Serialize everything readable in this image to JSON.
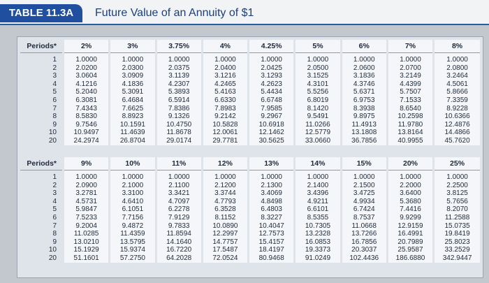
{
  "header": {
    "label": "TABLE 11.3A",
    "title": "Future Value of an Annuity of $1"
  },
  "tables": [
    {
      "header_row": [
        "Periods*",
        "2%",
        "3%",
        "3.75%",
        "4%",
        "4.25%",
        "5%",
        "6%",
        "7%",
        "8%"
      ],
      "rows": [
        [
          "1",
          "1.0000",
          "1.0000",
          "1.0000",
          "1.0000",
          "1.0000",
          "1.0000",
          "1.0000",
          "1.0000",
          "1.0000"
        ],
        [
          "2",
          "2.0200",
          "2.0300",
          "2.0375",
          "2.0400",
          "2.0425",
          "2.0500",
          "2.0600",
          "2.0700",
          "2.0800"
        ],
        [
          "3",
          "3.0604",
          "3.0909",
          "3.1139",
          "3.1216",
          "3.1293",
          "3.1525",
          "3.1836",
          "3.2149",
          "3.2464"
        ],
        [
          "4",
          "4.1216",
          "4.1836",
          "4.2307",
          "4.2465",
          "4.2623",
          "4.3101",
          "4.3746",
          "4.4399",
          "4.5061"
        ],
        [
          "5",
          "5.2040",
          "5.3091",
          "5.3893",
          "5.4163",
          "5.4434",
          "5.5256",
          "5.6371",
          "5.7507",
          "5.8666"
        ],
        [
          "6",
          "6.3081",
          "6.4684",
          "6.5914",
          "6.6330",
          "6.6748",
          "6.8019",
          "6.9753",
          "7.1533",
          "7.3359"
        ],
        [
          "7",
          "7.4343",
          "7.6625",
          "7.8386",
          "7.8983",
          "7.9585",
          "8.1420",
          "8.3938",
          "8.6540",
          "8.9228"
        ],
        [
          "8",
          "8.5830",
          "8.8923",
          "9.1326",
          "9.2142",
          "9.2967",
          "9.5491",
          "9.8975",
          "10.2598",
          "10.6366"
        ],
        [
          "9",
          "9.7546",
          "10.1591",
          "10.4750",
          "10.5828",
          "10.6918",
          "11.0266",
          "11.4913",
          "11.9780",
          "12.4876"
        ],
        [
          "10",
          "10.9497",
          "11.4639",
          "11.8678",
          "12.0061",
          "12.1462",
          "12.5779",
          "13.1808",
          "13.8164",
          "14.4866"
        ],
        [
          "20",
          "24.2974",
          "26.8704",
          "29.0174",
          "29.7781",
          "30.5625",
          "33.0660",
          "36.7856",
          "40.9955",
          "45.7620"
        ]
      ]
    },
    {
      "header_row": [
        "Periods*",
        "9%",
        "10%",
        "11%",
        "12%",
        "13%",
        "14%",
        "15%",
        "20%",
        "25%"
      ],
      "rows": [
        [
          "1",
          "1.0000",
          "1.0000",
          "1.0000",
          "1.0000",
          "1.0000",
          "1.0000",
          "1.0000",
          "1.0000",
          "1.0000"
        ],
        [
          "2",
          "2.0900",
          "2.1000",
          "2.1100",
          "2.1200",
          "2.1300",
          "2.1400",
          "2.1500",
          "2.2000",
          "2.2500"
        ],
        [
          "3",
          "3.2781",
          "3.3100",
          "3.3421",
          "3.3744",
          "3.4069",
          "3.4396",
          "3.4725",
          "3.6400",
          "3.8125"
        ],
        [
          "4",
          "4.5731",
          "4.6410",
          "4.7097",
          "4.7793",
          "4.8498",
          "4.9211",
          "4.9934",
          "5.3680",
          "5.7656"
        ],
        [
          "5",
          "5.9847",
          "6.1051",
          "6.2278",
          "6.3528",
          "6.4803",
          "6.6101",
          "6.7424",
          "7.4416",
          "8.2070"
        ],
        [
          "6",
          "7.5233",
          "7.7156",
          "7.9129",
          "8.1152",
          "8.3227",
          "8.5355",
          "8.7537",
          "9.9299",
          "11.2588"
        ],
        [
          "7",
          "9.2004",
          "9.4872",
          "9.7833",
          "10.0890",
          "10.4047",
          "10.7305",
          "11.0668",
          "12.9159",
          "15.0735"
        ],
        [
          "8",
          "11.0285",
          "11.4359",
          "11.8594",
          "12.2997",
          "12.7573",
          "13.2328",
          "13.7266",
          "16.4991",
          "19.8419"
        ],
        [
          "9",
          "13.0210",
          "13.5795",
          "14.1640",
          "14.7757",
          "15.4157",
          "16.0853",
          "16.7856",
          "20.7989",
          "25.8023"
        ],
        [
          "10",
          "15.1929",
          "15.9374",
          "16.7220",
          "17.5487",
          "18.4197",
          "19.3373",
          "20.3037",
          "25.9587",
          "33.2529"
        ],
        [
          "20",
          "51.1601",
          "57.2750",
          "64.2028",
          "72.0524",
          "80.9468",
          "91.0249",
          "102.4436",
          "186.6880",
          "342.9447"
        ]
      ]
    }
  ]
}
